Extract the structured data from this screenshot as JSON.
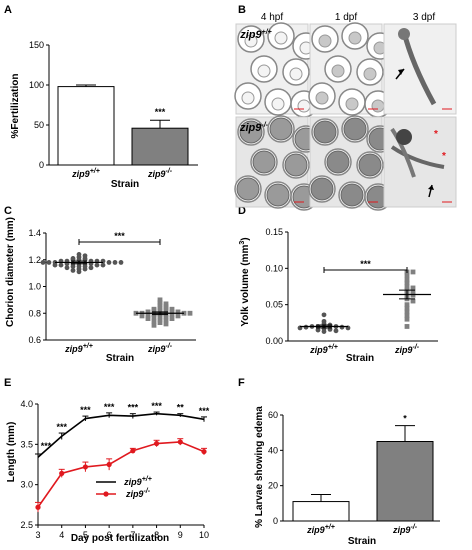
{
  "panels": {
    "A": {
      "letter": "A",
      "ylabel": "%Fertilization",
      "xlabel": "Strain",
      "ticks_y": [
        "0",
        "50",
        "100",
        "150"
      ],
      "categories": [
        "zip9+/+",
        "zip9-/-"
      ],
      "sig": "***"
    },
    "B": {
      "letter": "B",
      "columns": [
        "4 hpf",
        "1 dpf",
        "3 dpf"
      ],
      "rows": [
        "zip9+/+",
        "zip9-/-"
      ],
      "asterisk": "*"
    },
    "C": {
      "letter": "C",
      "ylabel": "Chorion diameter (mm)",
      "xlabel": "Strain",
      "ticks_y": [
        "0.6",
        "0.8",
        "1.0",
        "1.2",
        "1.4"
      ],
      "categories": [
        "zip9+/+",
        "zip9-/-"
      ],
      "sig": "***"
    },
    "D": {
      "letter": "D",
      "ylabel": "Yolk volume (mm3)",
      "xlabel": "Strain",
      "ticks_y": [
        "0.00",
        "0.05",
        "0.10",
        "0.15"
      ],
      "categories": [
        "zip9+/+",
        "zip9-/-"
      ],
      "sig": "***"
    },
    "E": {
      "letter": "E",
      "ylabel": "Length (mm)",
      "xlabel": "Day post fertilization",
      "ticks_y": [
        "2.5",
        "3.0",
        "3.5",
        "4.0"
      ],
      "ticks_x": [
        "3",
        "4",
        "5",
        "6",
        "7",
        "8",
        "9",
        "10"
      ],
      "legend": [
        "zip9+/+",
        "zip9-/-"
      ],
      "sigs": [
        "***",
        "***",
        "***",
        "***",
        "***",
        "***",
        "**",
        "***"
      ]
    },
    "F": {
      "letter": "F",
      "ylabel": "% Larvae showing edema",
      "xlabel": "Strain",
      "ticks_y": [
        "0",
        "20",
        "40",
        "60"
      ],
      "categories": [
        "zip9+/+",
        "zip9-/-"
      ],
      "sig": "*"
    }
  },
  "chart_data": [
    {
      "panel": "A",
      "type": "bar",
      "categories": [
        "zip9+/+",
        "zip9-/-"
      ],
      "values": [
        98,
        46
      ],
      "errors": [
        2,
        10
      ],
      "ylabel": "%Fertilization",
      "xlabel": "Strain",
      "ylim": [
        0,
        150
      ],
      "colors": [
        "#ffffff",
        "#808080"
      ]
    },
    {
      "panel": "C",
      "type": "scatter",
      "categories": [
        "zip9+/+",
        "zip9-/-"
      ],
      "means": [
        1.18,
        0.8
      ],
      "errors": [
        0.01,
        0.01
      ],
      "points": [
        [
          1.22,
          1.21,
          1.21,
          1.2,
          1.2,
          1.2,
          1.19,
          1.19,
          1.19,
          1.19,
          1.19,
          1.18,
          1.18,
          1.18,
          1.18,
          1.18,
          1.18,
          1.17,
          1.17,
          1.17,
          1.17,
          1.17,
          1.16,
          1.16,
          1.16,
          1.16,
          1.15,
          1.15,
          1.15,
          1.14,
          1.14,
          1.13,
          1.13,
          1.12,
          1.24,
          1.23,
          1.11
        ],
        [
          0.9,
          0.88,
          0.87,
          0.86,
          0.85,
          0.84,
          0.84,
          0.83,
          0.83,
          0.82,
          0.82,
          0.82,
          0.81,
          0.81,
          0.81,
          0.8,
          0.8,
          0.8,
          0.8,
          0.79,
          0.79,
          0.79,
          0.79,
          0.78,
          0.78,
          0.78,
          0.77,
          0.77,
          0.77,
          0.76,
          0.76,
          0.75,
          0.75,
          0.74,
          0.73,
          0.72,
          0.71
        ]
      ],
      "ylabel": "Chorion diameter (mm)",
      "xlabel": "Strain",
      "ylim": [
        0.6,
        1.4
      ],
      "colors": [
        "#555555",
        "#808080"
      ]
    },
    {
      "panel": "D",
      "type": "scatter",
      "categories": [
        "zip9+/+",
        "zip9-/-"
      ],
      "means": [
        0.02,
        0.064
      ],
      "errors": [
        0.002,
        0.006
      ],
      "points": [
        [
          0.036,
          0.027,
          0.024,
          0.022,
          0.021,
          0.021,
          0.02,
          0.02,
          0.02,
          0.019,
          0.019,
          0.018,
          0.018,
          0.017,
          0.016,
          0.015,
          0.014,
          0.013
        ],
        [
          0.095,
          0.095,
          0.09,
          0.084,
          0.08,
          0.075,
          0.073,
          0.07,
          0.068,
          0.066,
          0.063,
          0.061,
          0.058,
          0.055,
          0.05,
          0.045,
          0.04,
          0.035,
          0.03,
          0.02
        ]
      ],
      "ylabel": "Yolk volume (mm3)",
      "xlabel": "Strain",
      "ylim": [
        0.0,
        0.15
      ],
      "colors": [
        "#555555",
        "#808080"
      ]
    },
    {
      "panel": "E",
      "type": "line",
      "x": [
        3,
        4,
        5,
        6,
        7,
        8,
        9,
        10
      ],
      "series": [
        {
          "name": "zip9+/+",
          "values": [
            3.34,
            3.6,
            3.82,
            3.86,
            3.85,
            3.88,
            3.86,
            3.81
          ],
          "errors": [
            0.04,
            0.04,
            0.03,
            0.03,
            0.03,
            0.02,
            0.02,
            0.03
          ],
          "color": "#000000"
        },
        {
          "name": "zip9-/-",
          "values": [
            2.72,
            3.14,
            3.22,
            3.25,
            3.42,
            3.51,
            3.53,
            3.41
          ],
          "errors": [
            0.06,
            0.05,
            0.06,
            0.07,
            0.03,
            0.04,
            0.04,
            0.04
          ],
          "color": "#e0191f"
        }
      ],
      "ylabel": "Length (mm)",
      "xlabel": "Day post fertilization",
      "xlim": [
        3,
        10
      ],
      "ylim": [
        2.5,
        4.0
      ]
    },
    {
      "panel": "F",
      "type": "bar",
      "categories": [
        "zip9+/+",
        "zip9-/-"
      ],
      "values": [
        11,
        45
      ],
      "errors": [
        4,
        9
      ],
      "ylabel": "% Larvae showing edema",
      "xlabel": "Strain",
      "ylim": [
        0,
        60
      ],
      "colors": [
        "#ffffff",
        "#808080"
      ]
    }
  ]
}
